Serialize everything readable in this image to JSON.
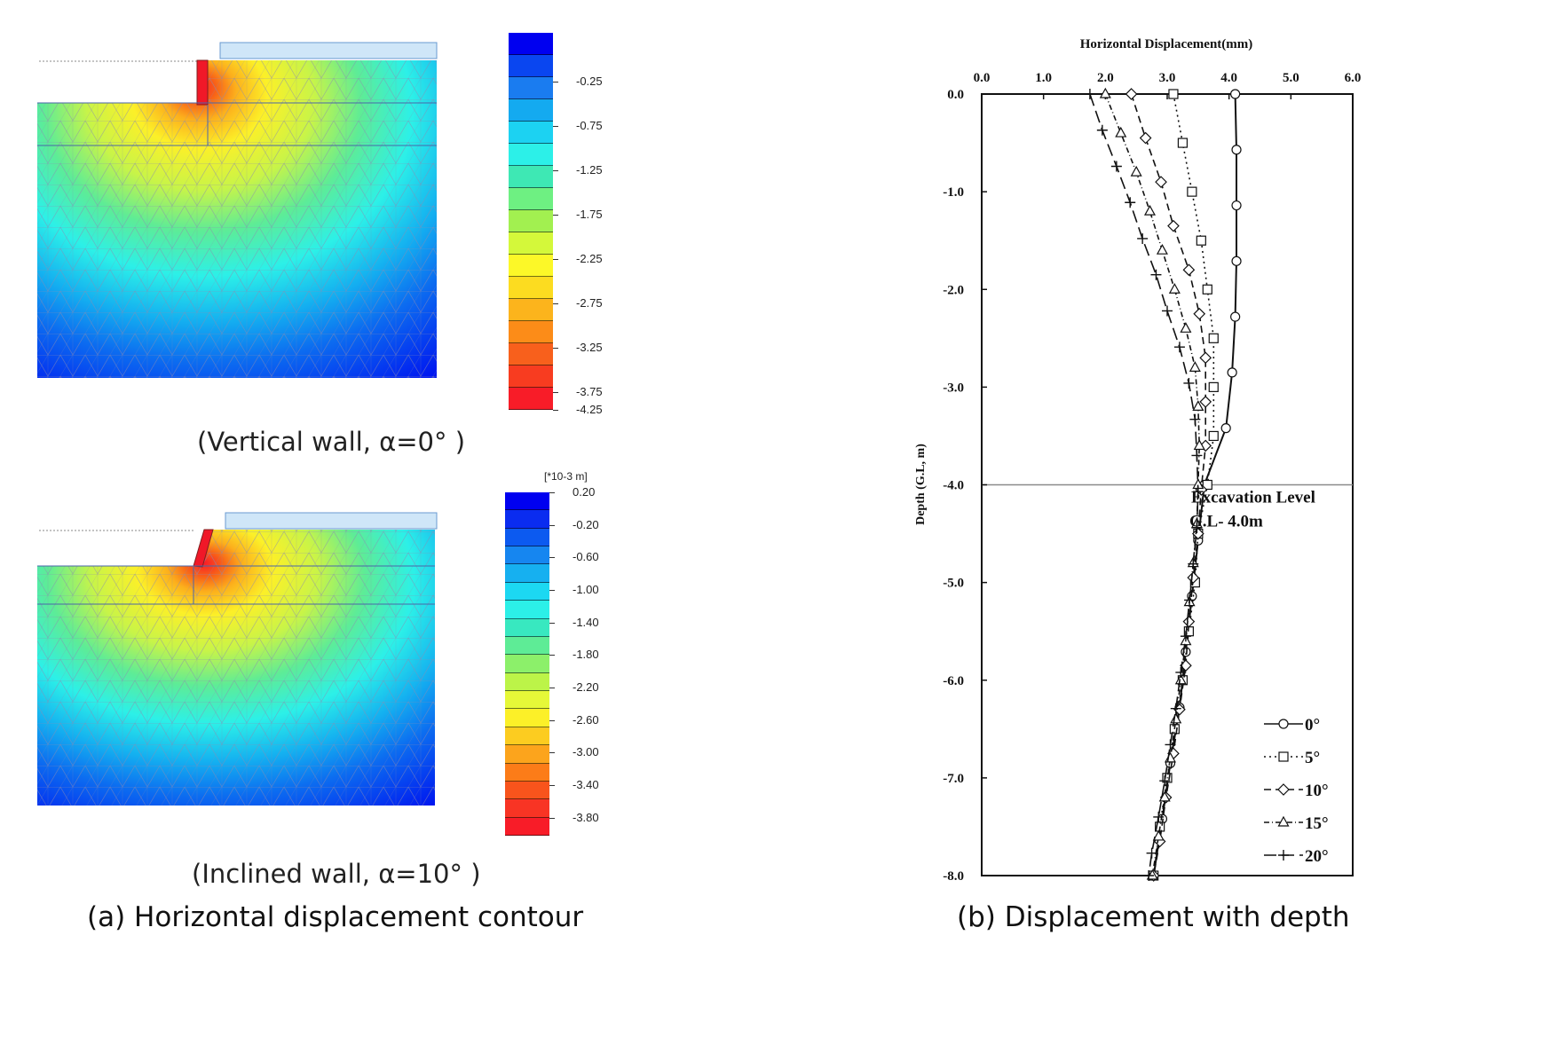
{
  "captions": {
    "a": "(a) Horizontal displacement contour",
    "b": "(b) Displacement with depth",
    "vertical": "(Vertical wall, α=0°  )",
    "inclined": "(Inclined wall, α=10°  )"
  },
  "legend_top": {
    "labels": [
      "-0.25",
      "-0.75",
      "-1.25",
      "-1.75",
      "-2.25",
      "-2.75",
      "-3.25",
      "-3.75",
      "-4.25"
    ],
    "colors": [
      "#0000f0",
      "#0a46f0",
      "#1a7cf0",
      "#14aaf0",
      "#1cd2f2",
      "#2cf0e8",
      "#3ee8b4",
      "#6ef082",
      "#a2f050",
      "#d4f83a",
      "#fcf828",
      "#fcdc20",
      "#fcb41c",
      "#fc8c18",
      "#f8601c",
      "#f83c20",
      "#f81c28"
    ]
  },
  "legend_bottom": {
    "unit": "[*10-3 m]",
    "labels": [
      "0.20",
      "-0.20",
      "-0.60",
      "-1.00",
      "-1.40",
      "-1.80",
      "-2.20",
      "-2.60",
      "-3.00",
      "-3.40",
      "-3.80"
    ],
    "colors": [
      "#0000f0",
      "#0a2cf0",
      "#0c5af0",
      "#1686f0",
      "#16b0f0",
      "#1cd8f2",
      "#2cf0e8",
      "#38e8c0",
      "#5eec96",
      "#8cf06a",
      "#bcf448",
      "#e6f838",
      "#fcf028",
      "#fccc20",
      "#fca41c",
      "#fc7c18",
      "#f8541c",
      "#f83424",
      "#f81c28"
    ]
  },
  "chart_data": {
    "type": "line",
    "title": "Horizontal  Displacement(mm)",
    "xlabel": "Horizontal  Displacement(mm)",
    "ylabel": "Depth (G.L, m)",
    "xlim": [
      0,
      6
    ],
    "ylim": [
      -8,
      0
    ],
    "x_ticks": [
      "0.0",
      "1.0",
      "2.0",
      "3.0",
      "4.0",
      "5.0",
      "6.0"
    ],
    "y_ticks": [
      "0.0",
      "-1.0",
      "-2.0",
      "-3.0",
      "-4.0",
      "-5.0",
      "-6.0",
      "-7.0",
      "-8.0"
    ],
    "annotation": [
      "Excavation Level",
      "G.L- 4.0m"
    ],
    "excavation_level": -4.0,
    "series": [
      {
        "name": "0°",
        "marker": "circle",
        "dash": "",
        "points": [
          [
            4.1,
            0
          ],
          [
            4.12,
            -0.57
          ],
          [
            4.12,
            -1.14
          ],
          [
            4.12,
            -1.71
          ],
          [
            4.1,
            -2.28
          ],
          [
            4.05,
            -2.85
          ],
          [
            3.95,
            -3.42
          ],
          [
            3.6,
            -4.0
          ],
          [
            3.5,
            -4.57
          ],
          [
            3.4,
            -5.14
          ],
          [
            3.3,
            -5.71
          ],
          [
            3.2,
            -6.28
          ],
          [
            3.05,
            -6.85
          ],
          [
            2.92,
            -7.42
          ],
          [
            2.78,
            -8.0
          ]
        ]
      },
      {
        "name": "5°",
        "marker": "square",
        "dash": "2,4",
        "points": [
          [
            3.1,
            0
          ],
          [
            3.25,
            -0.5
          ],
          [
            3.4,
            -1.0
          ],
          [
            3.55,
            -1.5
          ],
          [
            3.65,
            -2.0
          ],
          [
            3.75,
            -2.5
          ],
          [
            3.75,
            -3.0
          ],
          [
            3.75,
            -3.5
          ],
          [
            3.65,
            -4.0
          ],
          [
            3.5,
            -4.5
          ],
          [
            3.45,
            -5.0
          ],
          [
            3.35,
            -5.5
          ],
          [
            3.25,
            -6.0
          ],
          [
            3.12,
            -6.5
          ],
          [
            3.0,
            -7.0
          ],
          [
            2.88,
            -7.5
          ],
          [
            2.78,
            -8.0
          ]
        ]
      },
      {
        "name": "10°",
        "marker": "diamond",
        "dash": "8,5",
        "points": [
          [
            2.42,
            0
          ],
          [
            2.65,
            -0.45
          ],
          [
            2.9,
            -0.9
          ],
          [
            3.1,
            -1.35
          ],
          [
            3.35,
            -1.8
          ],
          [
            3.52,
            -2.25
          ],
          [
            3.62,
            -2.7
          ],
          [
            3.62,
            -3.15
          ],
          [
            3.62,
            -3.6
          ],
          [
            3.55,
            -4.05
          ],
          [
            3.5,
            -4.5
          ],
          [
            3.42,
            -4.95
          ],
          [
            3.35,
            -5.4
          ],
          [
            3.3,
            -5.85
          ],
          [
            3.2,
            -6.3
          ],
          [
            3.1,
            -6.75
          ],
          [
            2.98,
            -7.2
          ],
          [
            2.88,
            -7.65
          ],
          [
            2.78,
            -8.0
          ]
        ]
      },
      {
        "name": "15°",
        "marker": "triangle",
        "dash": "6,3,1,3",
        "points": [
          [
            2.0,
            0
          ],
          [
            2.25,
            -0.4
          ],
          [
            2.5,
            -0.8
          ],
          [
            2.72,
            -1.2
          ],
          [
            2.92,
            -1.6
          ],
          [
            3.12,
            -2.0
          ],
          [
            3.3,
            -2.4
          ],
          [
            3.45,
            -2.8
          ],
          [
            3.5,
            -3.2
          ],
          [
            3.52,
            -3.6
          ],
          [
            3.5,
            -4.0
          ],
          [
            3.48,
            -4.4
          ],
          [
            3.42,
            -4.8
          ],
          [
            3.36,
            -5.2
          ],
          [
            3.3,
            -5.6
          ],
          [
            3.22,
            -6.0
          ],
          [
            3.14,
            -6.4
          ],
          [
            3.05,
            -6.8
          ],
          [
            2.96,
            -7.2
          ],
          [
            2.86,
            -7.6
          ],
          [
            2.76,
            -8.0
          ]
        ]
      },
      {
        "name": "20°",
        "marker": "plus",
        "dash": "14,6",
        "points": [
          [
            1.75,
            0
          ],
          [
            1.95,
            -0.37
          ],
          [
            2.18,
            -0.74
          ],
          [
            2.4,
            -1.11
          ],
          [
            2.6,
            -1.48
          ],
          [
            2.82,
            -1.85
          ],
          [
            3.0,
            -2.22
          ],
          [
            3.2,
            -2.59
          ],
          [
            3.35,
            -2.96
          ],
          [
            3.45,
            -3.33
          ],
          [
            3.48,
            -3.7
          ],
          [
            3.5,
            -4.07
          ],
          [
            3.48,
            -4.44
          ],
          [
            3.42,
            -4.81
          ],
          [
            3.36,
            -5.18
          ],
          [
            3.3,
            -5.55
          ],
          [
            3.22,
            -5.92
          ],
          [
            3.14,
            -6.29
          ],
          [
            3.05,
            -6.66
          ],
          [
            2.96,
            -7.03
          ],
          [
            2.86,
            -7.4
          ],
          [
            2.75,
            -7.77
          ],
          [
            2.7,
            -8.0
          ]
        ]
      }
    ]
  }
}
